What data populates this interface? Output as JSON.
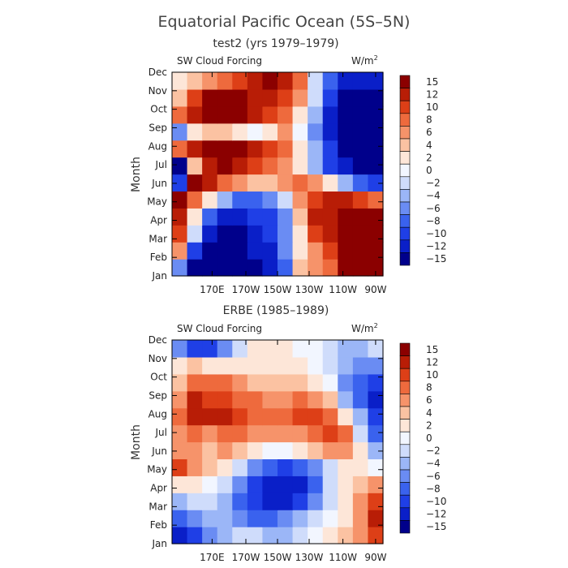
{
  "figure": {
    "title": "Equatorial Pacific Ocean (5S–5N)"
  },
  "chart_data": [
    {
      "type": "heatmap",
      "title": "test2 (yrs 1979–1979)",
      "variable": "SW Cloud Forcing",
      "units": "W/m",
      "units_sup": "2",
      "ylabel": "Month",
      "xlabel": "",
      "x_tick_labels": [
        "170E",
        "170W",
        "150W",
        "130W",
        "110W",
        "90W"
      ],
      "y_tick_labels": [
        "Jan",
        "Feb",
        "Mar",
        "Apr",
        "May",
        "Jun",
        "Jul",
        "Aug",
        "Sep",
        "Oct",
        "Nov",
        "Dec"
      ],
      "xlim": [
        "~150E",
        "90W"
      ],
      "colorbar": {
        "levels": [
          -15,
          -12,
          -10,
          -8,
          -6,
          -4,
          -2,
          0,
          2,
          4,
          6,
          8,
          10,
          12,
          15
        ],
        "labels": [
          "15",
          "12",
          "10",
          "8",
          "6",
          "4",
          "2",
          "0",
          "−2",
          "−4",
          "−6",
          "−8",
          "−10",
          "−12",
          "−15"
        ],
        "colors": [
          "#00008b",
          "#0a1fc8",
          "#1f3fe6",
          "#3a62ee",
          "#6a8cf3",
          "#9bb6f7",
          "#cfdcfb",
          "#f2f6ff",
          "#fde6d8",
          "#fbc2a2",
          "#f6936a",
          "#ee6a3d",
          "#dd3f17",
          "#b81d06",
          "#8b0000"
        ]
      },
      "grid": {
        "cols": 14,
        "rows": 12,
        "values": [
          [
            -6,
            -14,
            -15,
            -15,
            -16,
            -14,
            -12,
            -8,
            4,
            6,
            8,
            14,
            15,
            15
          ],
          [
            6,
            -10,
            -14,
            -15,
            -15,
            -13,
            -11,
            -6,
            2,
            6,
            10,
            15,
            15,
            15
          ],
          [
            10,
            -2,
            -12,
            -15,
            -14,
            -12,
            -10,
            -6,
            2,
            10,
            12,
            15,
            15,
            15
          ],
          [
            12,
            2,
            -8,
            -12,
            -12,
            -10,
            -9,
            -6,
            4,
            12,
            12,
            14,
            15,
            14
          ],
          [
            14,
            8,
            2,
            -4,
            -8,
            -8,
            -6,
            -2,
            6,
            10,
            12,
            12,
            10,
            8
          ],
          [
            -10,
            14,
            12,
            8,
            6,
            4,
            4,
            6,
            8,
            6,
            2,
            -4,
            -8,
            -10
          ],
          [
            -15,
            4,
            12,
            14,
            12,
            10,
            8,
            6,
            2,
            -4,
            -10,
            -12,
            -14,
            -15
          ],
          [
            8,
            12,
            14,
            15,
            14,
            12,
            10,
            8,
            2,
            -4,
            -10,
            -14,
            -15,
            -15
          ],
          [
            -6,
            2,
            4,
            4,
            2,
            0,
            2,
            6,
            0,
            -6,
            -12,
            -15,
            -15,
            -15
          ],
          [
            8,
            12,
            15,
            15,
            14,
            12,
            10,
            8,
            2,
            -4,
            -12,
            -15,
            -15,
            -15
          ],
          [
            4,
            10,
            14,
            15,
            14,
            12,
            12,
            10,
            6,
            -2,
            -10,
            -14,
            -15,
            -15
          ],
          [
            2,
            4,
            6,
            8,
            10,
            12,
            14,
            12,
            8,
            -2,
            -8,
            -12,
            -12,
            -12
          ]
        ]
      }
    },
    {
      "type": "heatmap",
      "title": "ERBE (1985–1989)",
      "variable": "SW Cloud Forcing",
      "units": "W/m",
      "units_sup": "2",
      "ylabel": "Month",
      "xlabel": "",
      "x_tick_labels": [
        "170E",
        "170W",
        "150W",
        "130W",
        "110W",
        "90W"
      ],
      "y_tick_labels": [
        "Jan",
        "Feb",
        "Mar",
        "Apr",
        "May",
        "Jun",
        "Jul",
        "Aug",
        "Sep",
        "Oct",
        "Nov",
        "Dec"
      ],
      "xlim": [
        "~150E",
        "90W"
      ],
      "colorbar": {
        "levels": [
          -15,
          -12,
          -10,
          -8,
          -6,
          -4,
          -2,
          0,
          2,
          4,
          6,
          8,
          10,
          12,
          15
        ],
        "labels": [
          "15",
          "12",
          "10",
          "8",
          "6",
          "4",
          "2",
          "0",
          "−2",
          "−4",
          "−6",
          "−8",
          "−10",
          "−12",
          "−15"
        ],
        "colors": [
          "#00008b",
          "#0a1fc8",
          "#1f3fe6",
          "#3a62ee",
          "#6a8cf3",
          "#9bb6f7",
          "#cfdcfb",
          "#f2f6ff",
          "#fde6d8",
          "#fbc2a2",
          "#f6936a",
          "#ee6a3d",
          "#dd3f17",
          "#b81d06",
          "#8b0000"
        ]
      },
      "grid": {
        "cols": 14,
        "rows": 12,
        "values": [
          [
            -12,
            -10,
            -6,
            -4,
            -2,
            -2,
            -4,
            -4,
            -2,
            0,
            2,
            4,
            6,
            10
          ],
          [
            -8,
            -6,
            -4,
            -4,
            -6,
            -8,
            -8,
            -6,
            -4,
            -2,
            0,
            2,
            6,
            12
          ],
          [
            -4,
            -2,
            -2,
            -4,
            -8,
            -10,
            -12,
            -12,
            -10,
            -6,
            -2,
            2,
            6,
            10
          ],
          [
            2,
            2,
            0,
            -2,
            -6,
            -10,
            -12,
            -13,
            -12,
            -8,
            -2,
            2,
            4,
            6
          ],
          [
            10,
            6,
            4,
            2,
            -2,
            -6,
            -8,
            -10,
            -8,
            -6,
            -2,
            2,
            2,
            0
          ],
          [
            6,
            6,
            4,
            6,
            4,
            2,
            0,
            0,
            2,
            4,
            6,
            6,
            2,
            -4
          ],
          [
            6,
            8,
            6,
            8,
            8,
            6,
            6,
            6,
            6,
            8,
            10,
            8,
            -2,
            -8
          ],
          [
            8,
            12,
            12,
            12,
            10,
            8,
            8,
            8,
            10,
            10,
            8,
            2,
            -4,
            -10
          ],
          [
            6,
            12,
            10,
            10,
            8,
            8,
            6,
            6,
            8,
            6,
            4,
            -4,
            -8,
            -12
          ],
          [
            4,
            8,
            8,
            8,
            6,
            4,
            4,
            4,
            4,
            2,
            0,
            -6,
            -8,
            -10
          ],
          [
            2,
            4,
            2,
            2,
            2,
            2,
            2,
            2,
            2,
            0,
            -2,
            -4,
            -6,
            -6
          ],
          [
            -6,
            -10,
            -10,
            -6,
            -2,
            2,
            2,
            2,
            0,
            0,
            -2,
            -4,
            -4,
            -2
          ]
        ]
      }
    }
  ]
}
